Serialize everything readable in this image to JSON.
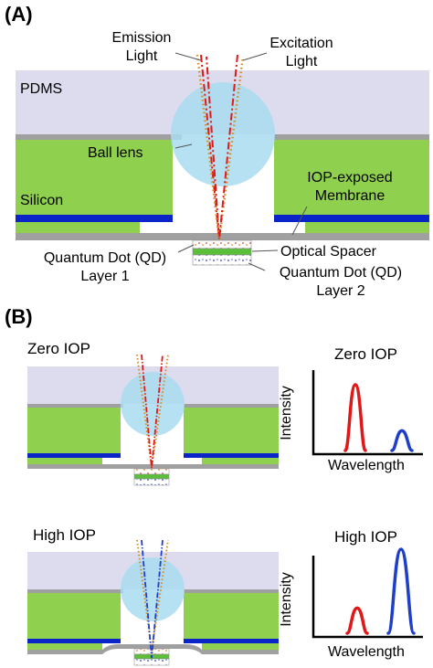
{
  "panel_a": {
    "letter": "(A)",
    "labels": {
      "emission_l1": "Emission",
      "emission_l2": "Light",
      "excitation_l1": "Excitation",
      "excitation_l2": "Light",
      "pdms": "PDMS",
      "ball_lens": "Ball lens",
      "silicon": "Silicon",
      "iop_l1": "IOP-exposed",
      "iop_l2": "Membrane",
      "qd1_l1": "Quantum Dot (QD)",
      "qd1_l2": "Layer 1",
      "spacer": "Optical Spacer",
      "qd2_l1": "Quantum Dot (QD)",
      "qd2_l2": "Layer 2"
    }
  },
  "panel_b": {
    "letter": "(B)",
    "zero": {
      "title": "Zero IOP",
      "chart_title": "Zero IOP",
      "ylabel": "Intensity",
      "xlabel": "Wavelength"
    },
    "high": {
      "title": "High IOP",
      "chart_title": "High IOP",
      "ylabel": "Intensity",
      "xlabel": "Wavelength"
    }
  },
  "colors": {
    "pdms": "#dcdcee",
    "silicon": "#8fd14f",
    "blue_layer": "#0a24c8",
    "gray_layer": "#a0a0a0",
    "lens": "#a9dcf0",
    "emission_red": "#e01818",
    "excitation_orange": "#d78c1e",
    "emission_blue": "#1f3fc8"
  },
  "chart_data": [
    {
      "type": "line",
      "title": "Zero IOP",
      "xlabel": "Wavelength",
      "ylabel": "Intensity",
      "series": [
        {
          "color": "red",
          "peak_relative": 1.0
        },
        {
          "color": "blue",
          "peak_relative": 0.3
        }
      ]
    },
    {
      "type": "line",
      "title": "High IOP",
      "xlabel": "Wavelength",
      "ylabel": "Intensity",
      "series": [
        {
          "color": "red",
          "peak_relative": 0.3
        },
        {
          "color": "blue",
          "peak_relative": 1.0
        }
      ]
    }
  ]
}
